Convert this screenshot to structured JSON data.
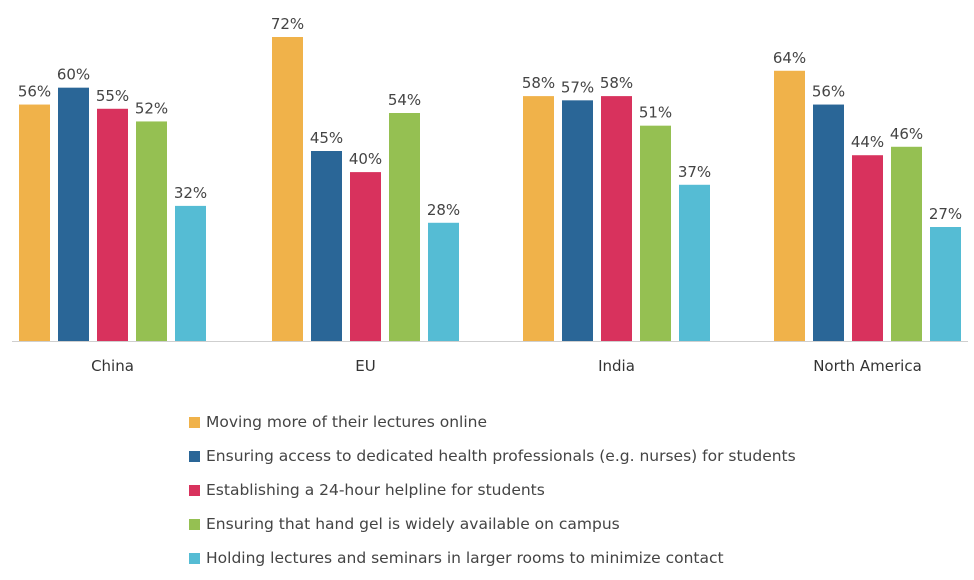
{
  "chart_data": {
    "type": "bar",
    "categories": [
      "China",
      "EU",
      "India",
      "North America"
    ],
    "series": [
      {
        "name": "Moving more of their lectures online",
        "color": "#F0B24A",
        "values": [
          56,
          72,
          58,
          64
        ]
      },
      {
        "name": "Ensuring access to dedicated health professionals (e.g. nurses) for students",
        "color": "#2A6697",
        "values": [
          60,
          45,
          57,
          56
        ]
      },
      {
        "name": "Establishing a 24-hour helpline for students",
        "color": "#D8325D",
        "values": [
          55,
          40,
          58,
          44
        ]
      },
      {
        "name": "Ensuring that hand gel is widely available on campus",
        "color": "#95C052",
        "values": [
          52,
          54,
          51,
          46
        ]
      },
      {
        "name": "Holding lectures and seminars in larger rooms to minimize contact",
        "color": "#55BCD4",
        "values": [
          32,
          28,
          37,
          27
        ]
      }
    ],
    "value_suffix": "%",
    "ylim": [
      0,
      72
    ],
    "title": "",
    "xlabel": "",
    "ylabel": "",
    "grid": false,
    "legend_position": "bottom"
  }
}
